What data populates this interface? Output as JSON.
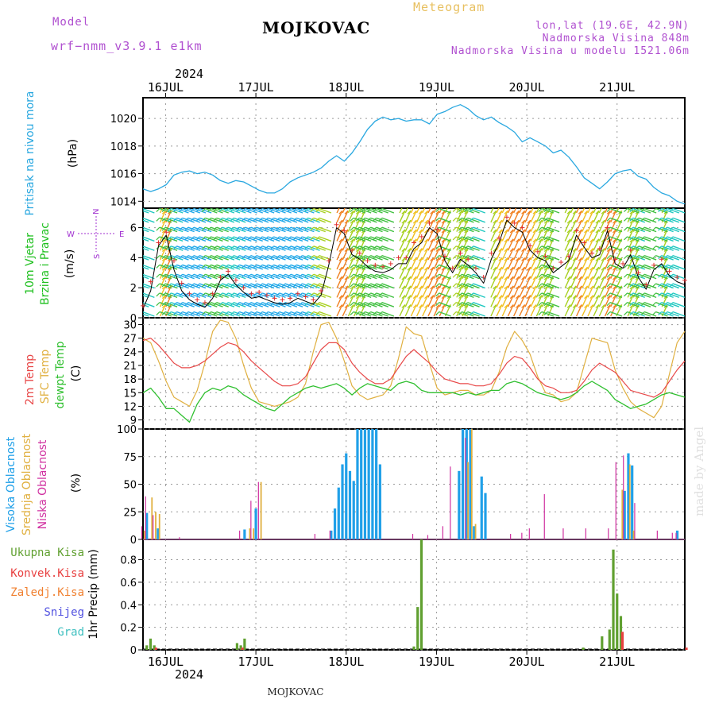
{
  "header": {
    "model_label": "Model",
    "model_name": "wrf−nmm_v3.9.1  e1km",
    "station": "MOJKOVAC",
    "product": "Meteogram",
    "lonlat": "lon,lat (19.6E, 42.9N)",
    "elevation": "Nadmorska Visina 848m",
    "model_elevation": "Nadmorska Visina u modelu 1521.06m",
    "year_top": "2024",
    "year_bottom": "2024",
    "footer_station": "MOJKOVAC",
    "watermark": "made by Angel"
  },
  "colors": {
    "pressure": "#2aa8e0",
    "wind_speed": "#000000",
    "gust": "#e03030",
    "temp2m": "#e84848",
    "sfc_temp": "#e0b040",
    "dewpoint": "#30c030",
    "cloud_high": "#20a0e8",
    "cloud_mid": "#e0b040",
    "cloud_low": "#d030a0",
    "precip_total": "#60a030",
    "precip_conv": "#e84040",
    "precip_frz": "#f08030",
    "snow": "#5050e0",
    "graupel": "#40c0c0",
    "panel_labels": {
      "pressure": "#2aa8e0",
      "wind": "#20c020",
      "compass": "#a030d0"
    }
  },
  "chart_data": [
    {
      "type": "line",
      "panel": "pressure",
      "ylabel_lines": [
        "Pritisak na nivou mora"
      ],
      "unit": "(hPa)",
      "x_ticks": [
        "16JUL",
        "17JUL",
        "18JUL",
        "19JUL",
        "20JUL",
        "21JUL"
      ],
      "ylim": [
        1013.5,
        1021.5
      ],
      "yticks": [
        "1014",
        "1016",
        "1018",
        "1020"
      ],
      "ytick_values": [
        1014,
        1016,
        1018,
        1020
      ],
      "grid": true,
      "x_hours_start": 0,
      "x_hours_end": 144,
      "series": [
        {
          "values": [
            1014.9,
            1014.7,
            1014.9,
            1015.2,
            1015.9,
            1016.1,
            1016.2,
            1016.0,
            1016.1,
            1015.9,
            1015.5,
            1015.3,
            1015.5,
            1015.4,
            1015.1,
            1014.8,
            1014.6,
            1014.6,
            1014.9,
            1015.4,
            1015.7,
            1015.9,
            1016.1,
            1016.4,
            1016.9,
            1017.3,
            1016.9,
            1017.5,
            1018.3,
            1019.2,
            1019.8,
            1020.1,
            1019.9,
            1020.0,
            1019.8,
            1019.9,
            1019.9,
            1019.6,
            1020.3,
            1020.5,
            1020.8,
            1021.0,
            1020.7,
            1020.2,
            1019.9,
            1020.1,
            1019.7,
            1019.4,
            1019.0,
            1018.3,
            1018.6,
            1018.3,
            1018.0,
            1017.5,
            1017.7,
            1017.2,
            1016.5,
            1015.7,
            1015.3,
            1014.9,
            1015.4,
            1016.0,
            1016.2,
            1016.3,
            1015.8,
            1015.6,
            1015.0,
            1014.6,
            1014.4,
            1014.0,
            1013.8
          ]
        }
      ]
    },
    {
      "type": "line",
      "panel": "wind",
      "ylabel_lines": [
        "10m Vjetar",
        "Brzina i Pravac"
      ],
      "unit": "(m/s)",
      "compass": {
        "n": "N",
        "s": "S",
        "w": "W",
        "e": "E"
      },
      "ylim": [
        0,
        7.3
      ],
      "yticks": [
        "0",
        "2",
        "4",
        "6"
      ],
      "ytick_values": [
        0,
        2,
        4,
        6
      ],
      "grid": true,
      "series": [
        {
          "name": "speed",
          "values": [
            0.6,
            1.8,
            4.8,
            5.5,
            3.2,
            1.8,
            1.2,
            0.9,
            0.7,
            1.3,
            2.5,
            2.9,
            2.2,
            1.7,
            1.3,
            1.4,
            1.2,
            1.0,
            0.9,
            1.0,
            1.3,
            1.1,
            0.9,
            1.5,
            3.5,
            6.0,
            5.6,
            4.2,
            3.9,
            3.4,
            3.1,
            3.0,
            3.2,
            3.6,
            3.6,
            4.6,
            5.0,
            6.0,
            5.6,
            3.8,
            3.0,
            3.9,
            3.5,
            3.0,
            2.3,
            3.9,
            5.0,
            6.5,
            6.0,
            5.7,
            4.5,
            4.0,
            3.8,
            3.0,
            3.4,
            3.8,
            5.5,
            4.7,
            4.0,
            4.2,
            5.8,
            3.6,
            3.3,
            4.2,
            2.7,
            1.9,
            3.2,
            3.6,
            2.8,
            2.4,
            2.2
          ]
        },
        {
          "name": "gust",
          "values": [
            0.8,
            2.4,
            5.0,
            5.7,
            3.8,
            2.3,
            1.6,
            1.2,
            1.0,
            1.6,
            2.7,
            3.1,
            2.5,
            2.0,
            1.6,
            1.7,
            1.5,
            1.3,
            1.2,
            1.3,
            1.6,
            1.4,
            1.2,
            1.8,
            3.8,
            6.2,
            5.8,
            4.5,
            4.3,
            3.8,
            3.5,
            3.4,
            3.6,
            4.0,
            4.0,
            5.0,
            5.4,
            6.3,
            5.9,
            4.1,
            3.3,
            4.3,
            3.9,
            3.3,
            2.7,
            4.3,
            5.3,
            6.7,
            6.3,
            6.0,
            4.8,
            4.4,
            4.1,
            3.3,
            3.7,
            4.1,
            5.8,
            5.0,
            4.3,
            4.6,
            6.0,
            3.9,
            3.6,
            4.5,
            3.0,
            2.2,
            3.5,
            3.9,
            3.1,
            2.7,
            2.5
          ]
        }
      ]
    },
    {
      "type": "line",
      "panel": "temperature",
      "ylabel_lines": [
        "2m Temp",
        "SFC Temp",
        "dewpt Temp"
      ],
      "unit": "(C)",
      "ylim": [
        7,
        31.5
      ],
      "yticks": [
        "9",
        "12",
        "15",
        "18",
        "21",
        "24",
        "27",
        "30"
      ],
      "ytick_values": [
        9,
        12,
        15,
        18,
        21,
        24,
        27,
        30
      ],
      "grid": true,
      "series": [
        {
          "name": "2m Temp",
          "values": [
            26.5,
            27.0,
            25.5,
            23.5,
            21.5,
            20.5,
            20.5,
            21.0,
            22.0,
            23.5,
            25.0,
            26.0,
            25.5,
            24.0,
            22.0,
            20.5,
            19.0,
            17.5,
            16.5,
            16.5,
            17.0,
            18.5,
            21.5,
            24.5,
            26.0,
            26.0,
            24.5,
            21.5,
            19.5,
            18.0,
            17.0,
            17.0,
            18.0,
            20.5,
            23.0,
            24.5,
            23.0,
            21.5,
            19.5,
            18.0,
            17.5,
            17.0,
            17.0,
            16.5,
            16.5,
            17.0,
            19.0,
            21.5,
            23.0,
            22.5,
            20.5,
            18.0,
            16.5,
            16.0,
            15.0,
            15.0,
            15.5,
            17.5,
            20.0,
            21.5,
            20.5,
            19.5,
            17.5,
            15.5,
            15.0,
            14.5,
            14.0,
            15.0,
            17.5,
            20.0,
            22.0
          ]
        },
        {
          "name": "SFC Temp",
          "values": [
            27.0,
            26.0,
            22.0,
            17.5,
            14.0,
            13.0,
            12.0,
            15.5,
            21.5,
            28.5,
            31.0,
            30.5,
            27.0,
            21.0,
            16.0,
            13.0,
            12.5,
            12.0,
            12.5,
            13.0,
            14.0,
            17.0,
            24.0,
            30.0,
            30.5,
            27.0,
            22.0,
            16.5,
            14.5,
            13.5,
            14.0,
            14.5,
            16.5,
            22.5,
            29.5,
            28.0,
            27.5,
            21.5,
            16.0,
            14.5,
            15.0,
            15.5,
            15.5,
            14.5,
            14.5,
            15.5,
            19.5,
            25.0,
            28.5,
            26.5,
            23.5,
            18.5,
            15.0,
            14.5,
            13.0,
            13.5,
            15.0,
            21.0,
            27.0,
            26.5,
            26.0,
            20.0,
            16.0,
            13.0,
            11.5,
            10.5,
            9.5,
            12.0,
            19.0,
            26.0,
            28.5
          ]
        },
        {
          "name": "dewpt Temp",
          "values": [
            15.0,
            16.0,
            14.0,
            11.5,
            11.5,
            10.0,
            8.5,
            12.5,
            15.0,
            16.0,
            15.5,
            16.5,
            16.0,
            14.5,
            13.5,
            12.5,
            11.5,
            11.0,
            12.5,
            14.0,
            15.0,
            16.0,
            16.5,
            16.0,
            16.5,
            17.0,
            16.0,
            14.5,
            16.0,
            17.0,
            16.5,
            16.0,
            15.5,
            17.0,
            17.5,
            17.0,
            15.5,
            15.0,
            15.0,
            15.0,
            15.0,
            14.5,
            15.0,
            14.5,
            15.0,
            15.5,
            15.5,
            17.0,
            17.5,
            17.0,
            16.0,
            15.0,
            14.5,
            14.0,
            13.5,
            14.0,
            15.0,
            16.5,
            17.5,
            16.5,
            15.5,
            13.5,
            12.5,
            11.5,
            12.0,
            12.5,
            13.5,
            14.5,
            15.0,
            14.5,
            14.0
          ]
        }
      ]
    },
    {
      "type": "bar",
      "panel": "clouds",
      "ylabel_lines": [
        "Visoka Oblacnost",
        "Srednja Oblacnost",
        "Niska Oblacnost"
      ],
      "unit": "(%)",
      "ylim": [
        0,
        100
      ],
      "yticks": [
        "0",
        "25",
        "50",
        "75",
        "100"
      ],
      "ytick_values": [
        0,
        25,
        50,
        75,
        100
      ],
      "grid": true,
      "series": [
        {
          "name": "Visoka Oblacnost",
          "points": [
            [
              1,
              24
            ],
            [
              4,
              10
            ],
            [
              27,
              9
            ],
            [
              30,
              28
            ],
            [
              50,
              8
            ],
            [
              51,
              28
            ],
            [
              52,
              47
            ],
            [
              53,
              68
            ],
            [
              54,
              78
            ],
            [
              55,
              62
            ],
            [
              56,
              53
            ],
            [
              57,
              100
            ],
            [
              58,
              100
            ],
            [
              59,
              100
            ],
            [
              60,
              100
            ],
            [
              61,
              100
            ],
            [
              62,
              100
            ],
            [
              63,
              68
            ],
            [
              84,
              62
            ],
            [
              85,
              100
            ],
            [
              86,
              100
            ],
            [
              87,
              100
            ],
            [
              88,
              12
            ],
            [
              90,
              57
            ],
            [
              91,
              42
            ],
            [
              128,
              44
            ],
            [
              129,
              78
            ],
            [
              130,
              67
            ],
            [
              142,
              8
            ]
          ]
        },
        {
          "name": "Srednja Oblacnost",
          "points": [
            [
              0,
              8
            ],
            [
              2,
              38
            ],
            [
              3,
              25
            ],
            [
              4,
              23
            ],
            [
              28,
              10
            ],
            [
              29,
              10
            ],
            [
              31,
              52
            ],
            [
              86,
              70
            ],
            [
              87,
              100
            ],
            [
              88,
              14
            ],
            [
              127,
              45
            ],
            [
              129,
              68
            ],
            [
              130,
              8
            ]
          ]
        },
        {
          "name": "Niska Oblacnost",
          "points": [
            [
              0,
              12
            ],
            [
              1,
              39
            ],
            [
              3,
              22
            ],
            [
              10,
              2
            ],
            [
              26,
              8
            ],
            [
              29,
              35
            ],
            [
              31,
              52
            ],
            [
              46,
              5
            ],
            [
              50,
              8
            ],
            [
              72,
              5
            ],
            [
              76,
              4
            ],
            [
              80,
              12
            ],
            [
              82,
              66
            ],
            [
              86,
              92
            ],
            [
              98,
              5
            ],
            [
              101,
              6
            ],
            [
              103,
              10
            ],
            [
              107,
              41
            ],
            [
              112,
              10
            ],
            [
              118,
              10
            ],
            [
              124,
              10
            ],
            [
              126,
              70
            ],
            [
              128,
              76
            ],
            [
              131,
              33
            ],
            [
              137,
              8
            ],
            [
              141,
              6
            ],
            [
              142,
              6
            ]
          ]
        }
      ]
    },
    {
      "type": "bar",
      "panel": "precipitation",
      "ylabel_lines": [
        "1hr Precip (mm)"
      ],
      "legend": [
        "Ukupna Kisa",
        "Konvek.Kisa",
        "Zaledj.Kisa",
        "Snijeg",
        "Grad"
      ],
      "ylim": [
        0,
        0.98
      ],
      "yticks": [
        "0",
        "0.2",
        "0.4",
        "0.6",
        "0.8"
      ],
      "ytick_values": [
        0,
        0.2,
        0.4,
        0.6,
        0.8
      ],
      "grid": true,
      "series": [
        {
          "name": "Ukupna Kisa",
          "points": [
            [
              1,
              0.04
            ],
            [
              2,
              0.1
            ],
            [
              3,
              0.04
            ],
            [
              25,
              0.06
            ],
            [
              26,
              0.04
            ],
            [
              27,
              0.1
            ],
            [
              72,
              0.03
            ],
            [
              73,
              0.38
            ],
            [
              74,
              0.98
            ],
            [
              117,
              0.02
            ],
            [
              122,
              0.12
            ],
            [
              124,
              0.18
            ],
            [
              125,
              0.89
            ],
            [
              126,
              0.5
            ],
            [
              127,
              0.3
            ]
          ]
        },
        {
          "name": "Konvek.Kisa",
          "points": [
            [
              3,
              0.02
            ],
            [
              26,
              0.02
            ],
            [
              127,
              0.16
            ],
            [
              144,
              0.02
            ]
          ]
        }
      ]
    }
  ]
}
